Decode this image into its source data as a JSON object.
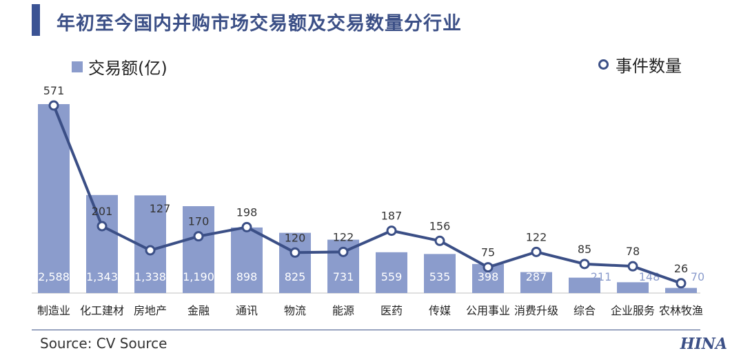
{
  "title": "年初至今国内并购市场交易额及交易数量分行业",
  "legend": {
    "bar_label": "交易额(亿)",
    "line_label": "事件数量"
  },
  "source": "Source: CV Source",
  "logo": "HINA",
  "colors": {
    "bar": "#8b9ccc",
    "line": "#3b4f86",
    "title": "#3b4f86"
  },
  "chart_data": {
    "type": "bar",
    "categories": [
      "制造业",
      "化工建材",
      "房地产",
      "金融",
      "通讯",
      "物流",
      "能源",
      "医药",
      "传媒",
      "公用事业",
      "消费升级",
      "综合",
      "企业服务",
      "农林牧渔"
    ],
    "series": [
      {
        "name": "交易额(亿)",
        "type": "bar",
        "values": [
          2588,
          1343,
          1338,
          1190,
          898,
          825,
          731,
          559,
          535,
          398,
          287,
          211,
          148,
          70
        ],
        "labels": [
          "2,588",
          "1,343",
          "1,338",
          "1,190",
          "898",
          "825",
          "731",
          "559",
          "535",
          "398",
          "287",
          "211",
          "148",
          "70"
        ]
      },
      {
        "name": "事件数量",
        "type": "line",
        "values": [
          571,
          201,
          127,
          170,
          198,
          120,
          122,
          187,
          156,
          75,
          122,
          85,
          78,
          26
        ],
        "labels": [
          "571",
          "201",
          "127",
          "170",
          "198",
          "120",
          "122",
          "187",
          "156",
          "75",
          "122",
          "85",
          "78",
          "26"
        ]
      }
    ],
    "grid": false,
    "legend_placement": "top"
  }
}
